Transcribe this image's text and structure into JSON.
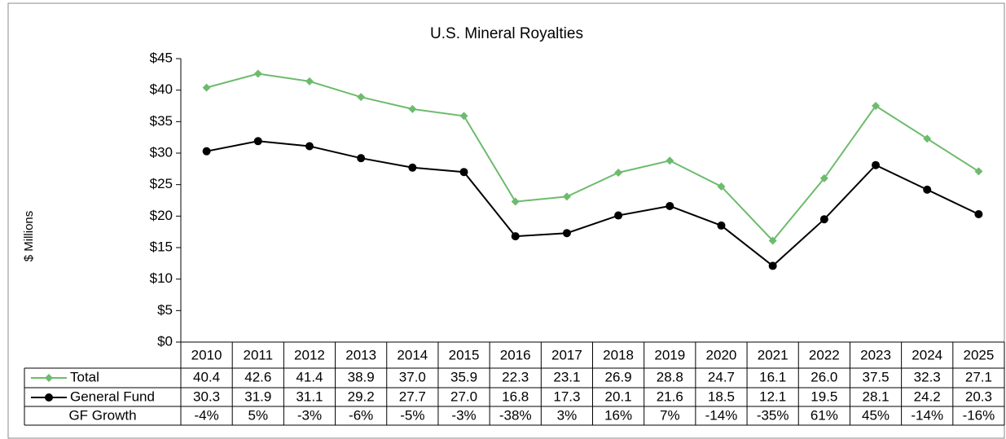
{
  "chart_data": {
    "type": "line",
    "title": "U.S. Mineral Royalties",
    "y_label": "$ Millions",
    "categories": [
      "2010",
      "2011",
      "2012",
      "2013",
      "2014",
      "2015",
      "2016",
      "2017",
      "2018",
      "2019",
      "2020",
      "2021",
      "2022",
      "2023",
      "2024",
      "2025"
    ],
    "series": [
      {
        "name": "Total",
        "color": "#6dbb6d",
        "marker": "diamond",
        "values": [
          40.4,
          42.6,
          41.4,
          38.9,
          37.0,
          35.9,
          22.3,
          23.1,
          26.9,
          28.8,
          24.7,
          16.1,
          26.0,
          37.5,
          32.3,
          27.1
        ],
        "value_labels": [
          "40.4",
          "42.6",
          "41.4",
          "38.9",
          "37.0",
          "35.9",
          "22.3",
          "23.1",
          "26.9",
          "28.8",
          "24.7",
          "16.1",
          "26.0",
          "37.5",
          "32.3",
          "27.1"
        ]
      },
      {
        "name": "General Fund",
        "color": "#000000",
        "marker": "circle",
        "values": [
          30.3,
          31.9,
          31.1,
          29.2,
          27.7,
          27.0,
          16.8,
          17.3,
          20.1,
          21.6,
          18.5,
          12.1,
          19.5,
          28.1,
          24.2,
          20.3
        ],
        "value_labels": [
          "30.3",
          "31.9",
          "31.1",
          "29.2",
          "27.7",
          "27.0",
          "16.8",
          "17.3",
          "20.1",
          "21.6",
          "18.5",
          "12.1",
          "19.5",
          "28.1",
          "24.2",
          "20.3"
        ]
      }
    ],
    "growth": {
      "name": "GF Growth",
      "values": [
        -4,
        5,
        -3,
        -6,
        -5,
        -3,
        -38,
        3,
        16,
        7,
        -14,
        -35,
        61,
        45,
        -14,
        -16
      ],
      "value_labels": [
        "-4%",
        "5%",
        "-3%",
        "-6%",
        "-5%",
        "-3%",
        "-38%",
        "3%",
        "16%",
        "7%",
        "-14%",
        "-35%",
        "61%",
        "45%",
        "-14%",
        "-16%"
      ]
    },
    "ylim": [
      0,
      45
    ],
    "yticks": [
      {
        "value": 0,
        "label": "$0"
      },
      {
        "value": 5,
        "label": "$5"
      },
      {
        "value": 10,
        "label": "$10"
      },
      {
        "value": 15,
        "label": "$15"
      },
      {
        "value": 20,
        "label": "$20"
      },
      {
        "value": 25,
        "label": "$25"
      },
      {
        "value": 30,
        "label": "$30"
      },
      {
        "value": 35,
        "label": "$35"
      },
      {
        "value": 40,
        "label": "$40"
      },
      {
        "value": 45,
        "label": "$45"
      }
    ],
    "grid": false
  }
}
